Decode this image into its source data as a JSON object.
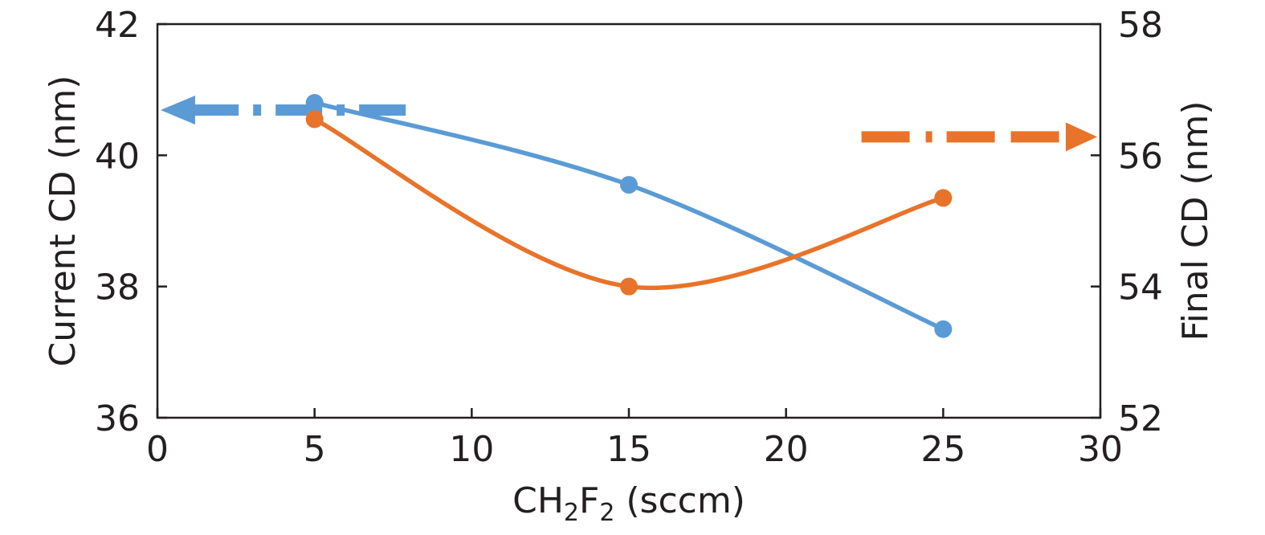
{
  "chart_data": {
    "type": "line",
    "x_label_parts": {
      "a": "CH",
      "b": "2",
      "c": "F",
      "d": "2",
      "e": " (sccm)"
    },
    "ylabel_left": "Current CD (nm)",
    "ylabel_right": "Final CD (nm)",
    "xlim": [
      0,
      30
    ],
    "ylim_left": [
      36,
      42
    ],
    "ylim_right": [
      52,
      58
    ],
    "x_ticks": [
      "0",
      "5",
      "10",
      "15",
      "20",
      "25",
      "30"
    ],
    "y_left_ticks": [
      "36",
      "38",
      "40",
      "42"
    ],
    "y_right_ticks": [
      "52",
      "54",
      "56",
      "58"
    ],
    "x": [
      5,
      15,
      25
    ],
    "series": [
      {
        "axis": "left",
        "color": "#5b9bd5",
        "values": [
          40.8,
          39.55,
          37.35
        ]
      },
      {
        "axis": "right",
        "color": "#e8732a",
        "values": [
          56.55,
          54.0,
          55.35
        ]
      }
    ],
    "grid": false
  }
}
